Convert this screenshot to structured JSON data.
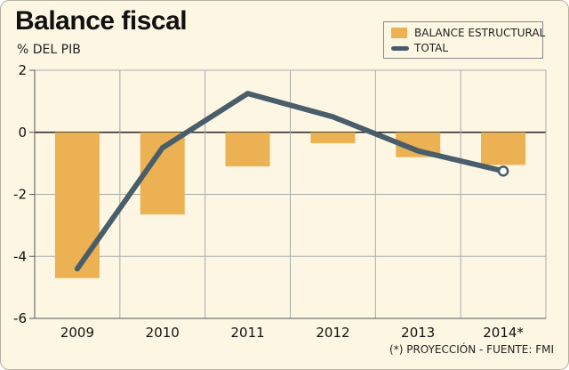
{
  "chart_data": {
    "type": "bar",
    "title": "Balance fiscal",
    "ylabel": "% DEL PIB",
    "categories": [
      "2009",
      "2010",
      "2011",
      "2012",
      "2013",
      "2014*"
    ],
    "ylim": [
      -6,
      2
    ],
    "yticks": [
      2,
      0,
      -2,
      -4,
      -6
    ],
    "grid": true,
    "legend_position": "top-right",
    "series": [
      {
        "name": "BALANCE ESTRUCTURAL",
        "kind": "bar",
        "color": "#ebb152",
        "values": [
          -4.7,
          -2.65,
          -1.1,
          -0.35,
          -0.8,
          -1.05
        ]
      },
      {
        "name": "TOTAL",
        "kind": "line",
        "color": "#495d6b",
        "values": [
          -4.4,
          -0.5,
          1.25,
          0.5,
          -0.6,
          -1.25
        ]
      }
    ],
    "footnote": "(*) PROYECCIÓN - FUENTE: FMI"
  }
}
